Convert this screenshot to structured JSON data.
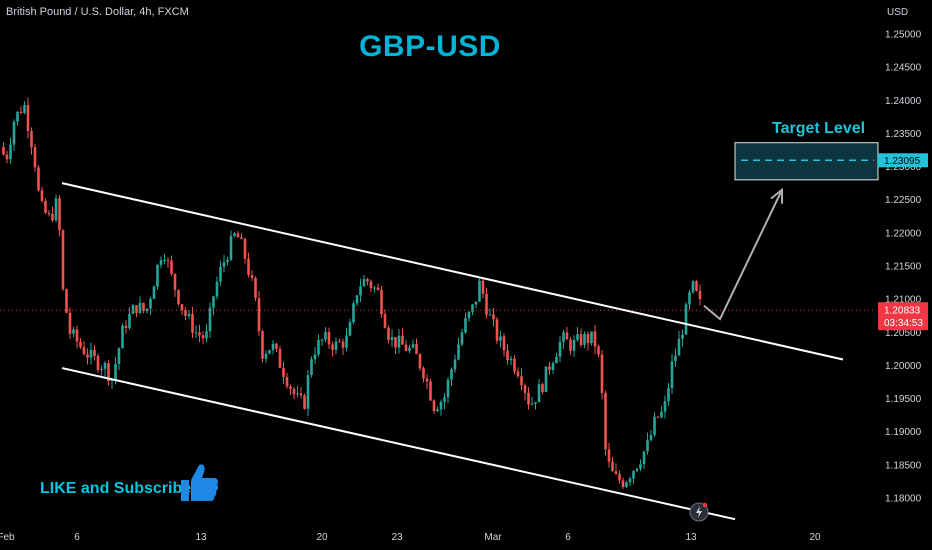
{
  "header": {
    "symbol": "British Pound / U.S. Dollar, 4h, FXCM",
    "currency": "USD"
  },
  "title": "GBP-USD",
  "cta": "LIKE and Subscribe",
  "target_label": "Target Level",
  "colors": {
    "background": "#000000",
    "bull": "#26a69a",
    "bear": "#ef5350",
    "channel": "#ffffff",
    "projection": "#b0b0b0",
    "accent": "#00b4d8",
    "target_box": "#0c3540",
    "price_tag": "#f23645",
    "target_tag": "#22c3d8"
  },
  "chart_data": {
    "type": "candlestick",
    "title": "GBP-USD",
    "symbol": "British Pound / U.S. Dollar",
    "interval": "4h",
    "source": "FXCM",
    "ylim": [
      1.175,
      1.2545
    ],
    "y_ticks": [
      "1.25000",
      "1.24500",
      "1.24000",
      "1.23500",
      "1.23000",
      "1.22500",
      "1.22000",
      "1.21500",
      "1.21000",
      "1.20500",
      "1.20000",
      "1.19500",
      "1.19000",
      "1.18500",
      "1.18000"
    ],
    "x_ticks": [
      "Feb",
      "6",
      "13",
      "20",
      "23",
      "Mar",
      "6",
      "13",
      "20"
    ],
    "grid": false,
    "current_price": "1.20833",
    "countdown": "03:34:53",
    "target_price": "1.23095",
    "path": [
      {
        "x": 0,
        "y": 1.233
      },
      {
        "x": 6,
        "y": 1.231
      },
      {
        "x": 14,
        "y": 1.237
      },
      {
        "x": 24,
        "y": 1.2395
      },
      {
        "x": 34,
        "y": 1.232
      },
      {
        "x": 40,
        "y": 1.224
      },
      {
        "x": 50,
        "y": 1.222
      },
      {
        "x": 58,
        "y": 1.225
      },
      {
        "x": 62,
        "y": 1.212
      },
      {
        "x": 70,
        "y": 1.205
      },
      {
        "x": 80,
        "y": 1.203
      },
      {
        "x": 92,
        "y": 1.201
      },
      {
        "x": 104,
        "y": 1.2
      },
      {
        "x": 112,
        "y": 1.198
      },
      {
        "x": 124,
        "y": 1.206
      },
      {
        "x": 136,
        "y": 1.209
      },
      {
        "x": 146,
        "y": 1.208
      },
      {
        "x": 156,
        "y": 1.214
      },
      {
        "x": 163,
        "y": 1.218
      },
      {
        "x": 172,
        "y": 1.213
      },
      {
        "x": 184,
        "y": 1.208
      },
      {
        "x": 196,
        "y": 1.205
      },
      {
        "x": 206,
        "y": 1.204
      },
      {
        "x": 214,
        "y": 1.211
      },
      {
        "x": 222,
        "y": 1.215
      },
      {
        "x": 230,
        "y": 1.218
      },
      {
        "x": 236,
        "y": 1.22
      },
      {
        "x": 244,
        "y": 1.217
      },
      {
        "x": 254,
        "y": 1.211
      },
      {
        "x": 262,
        "y": 1.202
      },
      {
        "x": 272,
        "y": 1.203
      },
      {
        "x": 284,
        "y": 1.199
      },
      {
        "x": 296,
        "y": 1.195
      },
      {
        "x": 304,
        "y": 1.194
      },
      {
        "x": 312,
        "y": 1.202
      },
      {
        "x": 324,
        "y": 1.204
      },
      {
        "x": 336,
        "y": 1.203
      },
      {
        "x": 348,
        "y": 1.204
      },
      {
        "x": 358,
        "y": 1.212
      },
      {
        "x": 366,
        "y": 1.213
      },
      {
        "x": 378,
        "y": 1.211
      },
      {
        "x": 390,
        "y": 1.204
      },
      {
        "x": 402,
        "y": 1.203
      },
      {
        "x": 414,
        "y": 1.202
      },
      {
        "x": 424,
        "y": 1.199
      },
      {
        "x": 434,
        "y": 1.194
      },
      {
        "x": 444,
        "y": 1.195
      },
      {
        "x": 454,
        "y": 1.201
      },
      {
        "x": 464,
        "y": 1.206
      },
      {
        "x": 474,
        "y": 1.209
      },
      {
        "x": 480,
        "y": 1.2125
      },
      {
        "x": 488,
        "y": 1.208
      },
      {
        "x": 498,
        "y": 1.204
      },
      {
        "x": 510,
        "y": 1.201
      },
      {
        "x": 520,
        "y": 1.199
      },
      {
        "x": 530,
        "y": 1.194
      },
      {
        "x": 542,
        "y": 1.197
      },
      {
        "x": 552,
        "y": 1.201
      },
      {
        "x": 562,
        "y": 1.204
      },
      {
        "x": 572,
        "y": 1.203
      },
      {
        "x": 582,
        "y": 1.204
      },
      {
        "x": 594,
        "y": 1.204
      },
      {
        "x": 600,
        "y": 1.2
      },
      {
        "x": 606,
        "y": 1.186
      },
      {
        "x": 614,
        "y": 1.183
      },
      {
        "x": 624,
        "y": 1.1825
      },
      {
        "x": 636,
        "y": 1.185
      },
      {
        "x": 648,
        "y": 1.188
      },
      {
        "x": 656,
        "y": 1.192
      },
      {
        "x": 664,
        "y": 1.193
      },
      {
        "x": 672,
        "y": 1.2
      },
      {
        "x": 680,
        "y": 1.204
      },
      {
        "x": 686,
        "y": 1.208
      },
      {
        "x": 692,
        "y": 1.212
      },
      {
        "x": 698,
        "y": 1.21
      },
      {
        "x": 702,
        "y": 1.2083
      }
    ],
    "channel_upper": [
      {
        "x": 62,
        "y": 1.2275
      },
      {
        "x": 843,
        "y": 1.2009
      }
    ],
    "channel_lower": [
      {
        "x": 62,
        "y": 1.1996
      },
      {
        "x": 735,
        "y": 1.1768
      }
    ],
    "projection": [
      {
        "x": 704,
        "y": 1.209
      },
      {
        "x": 720,
        "y": 1.207
      },
      {
        "x": 782,
        "y": 1.2265
      }
    ],
    "target_box": {
      "x_from": 735,
      "x_to": 878,
      "y_from": 1.2336,
      "y_to": 1.228
    }
  }
}
